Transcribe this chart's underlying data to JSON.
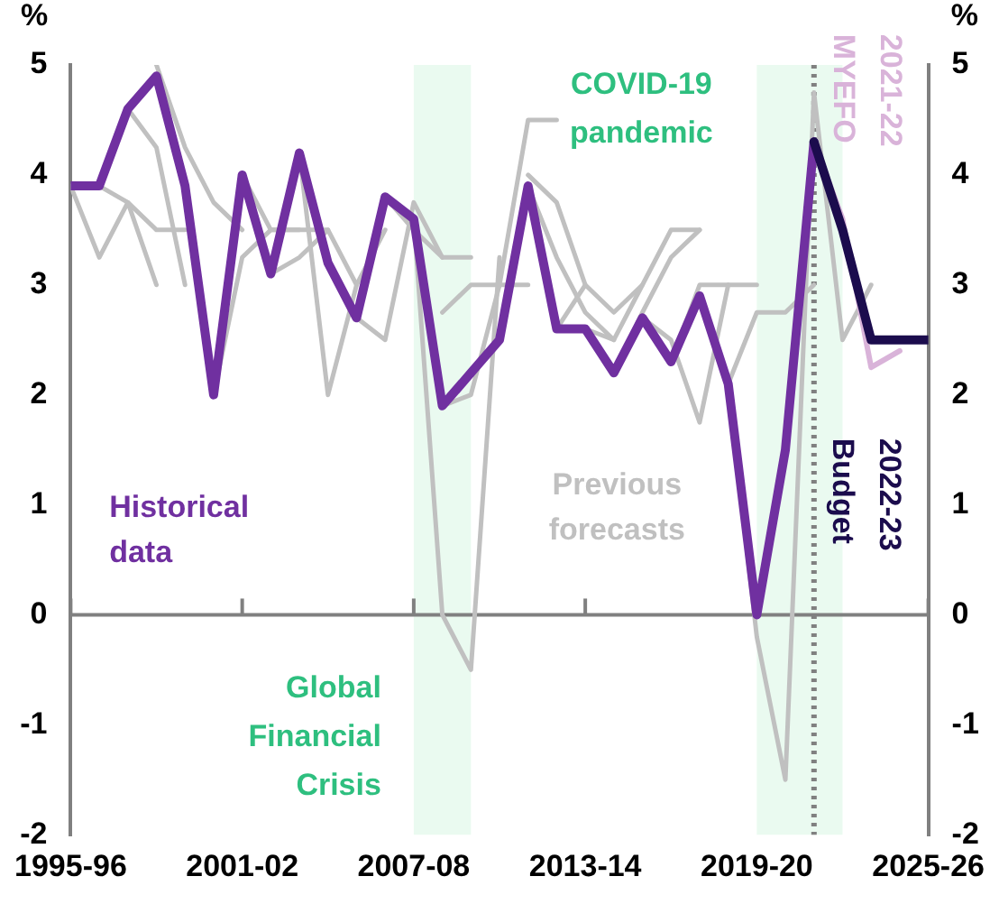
{
  "chart_data": {
    "type": "line",
    "ylabel": "%",
    "y2label": "%",
    "categories": [
      "1995-96",
      null,
      null,
      null,
      null,
      null,
      "2001-02",
      null,
      null,
      null,
      null,
      null,
      "2007-08",
      null,
      null,
      null,
      null,
      null,
      "2013-14",
      null,
      null,
      null,
      null,
      null,
      "2019-20",
      null,
      null,
      null,
      null,
      null,
      "2025-26"
    ],
    "ylim": [
      -2,
      5
    ],
    "yticks": [
      -2,
      -1,
      0,
      1,
      2,
      3,
      4,
      5
    ],
    "y2lim": [
      -2,
      5
    ],
    "y2ticks": [
      -2,
      -1,
      0,
      1,
      2,
      3,
      4,
      5
    ],
    "legend": false,
    "marker": "none",
    "grid": false,
    "annotations": [
      "Global Financial Crisis",
      "COVID-19 pandemic"
    ],
    "series": [
      {
        "name": "Previous forecasts",
        "color": "#c0c0c0",
        "values": [
          3.9,
          3.25,
          3.75,
          3.0,
          null,
          null,
          null,
          null,
          null,
          null,
          null,
          null,
          null,
          null,
          null,
          null,
          null,
          null,
          null,
          null,
          null,
          null,
          null,
          null,
          null,
          null,
          null,
          null,
          null,
          null,
          null
        ]
      },
      {
        "color": "#c0c0c0",
        "values": [
          null,
          3.9,
          3.75,
          3.5,
          3.5,
          null,
          null,
          null,
          null,
          null,
          null,
          null,
          null,
          null,
          null,
          null,
          null,
          null,
          null,
          null,
          null,
          null,
          null,
          null,
          null,
          null,
          null,
          null,
          null,
          null,
          null
        ]
      },
      {
        "color": "#c0c0c0",
        "values": [
          null,
          null,
          4.6,
          4.25,
          3.0,
          null,
          null,
          null,
          null,
          null,
          null,
          null,
          null,
          null,
          null,
          null,
          null,
          null,
          null,
          null,
          null,
          null,
          null,
          null,
          null,
          null,
          null,
          null,
          null,
          null,
          null
        ]
      },
      {
        "color": "#c0c0c0",
        "values": [
          null,
          null,
          null,
          5.0,
          4.25,
          3.75,
          3.5,
          null,
          null,
          null,
          null,
          null,
          null,
          null,
          null,
          null,
          null,
          null,
          null,
          null,
          null,
          null,
          null,
          null,
          null,
          null,
          null,
          null,
          null,
          null,
          null
        ]
      },
      {
        "color": "#c0c0c0",
        "values": [
          null,
          null,
          null,
          null,
          null,
          2.0,
          3.25,
          3.5,
          3.5,
          null,
          null,
          null,
          null,
          null,
          null,
          null,
          null,
          null,
          null,
          null,
          null,
          null,
          null,
          null,
          null,
          null,
          null,
          null,
          null,
          null,
          null
        ]
      },
      {
        "color": "#c0c0c0",
        "values": [
          null,
          null,
          null,
          null,
          null,
          null,
          4.0,
          3.5,
          3.5,
          3.5,
          null,
          null,
          null,
          null,
          null,
          null,
          null,
          null,
          null,
          null,
          null,
          null,
          null,
          null,
          null,
          null,
          null,
          null,
          null,
          null,
          null
        ]
      },
      {
        "color": "#c0c0c0",
        "values": [
          null,
          null,
          null,
          null,
          null,
          null,
          null,
          3.1,
          3.25,
          3.5,
          3.0,
          null,
          null,
          null,
          null,
          null,
          null,
          null,
          null,
          null,
          null,
          null,
          null,
          null,
          null,
          null,
          null,
          null,
          null,
          null,
          null
        ]
      },
      {
        "color": "#c0c0c0",
        "values": [
          null,
          null,
          null,
          null,
          null,
          null,
          null,
          null,
          4.2,
          2.0,
          3.0,
          3.5,
          null,
          null,
          null,
          null,
          null,
          null,
          null,
          null,
          null,
          null,
          null,
          null,
          null,
          null,
          null,
          null,
          null,
          null,
          null
        ]
      },
      {
        "color": "#c0c0c0",
        "values": [
          null,
          null,
          null,
          null,
          null,
          null,
          null,
          null,
          null,
          null,
          2.7,
          2.5,
          3.75,
          3.25,
          null,
          null,
          null,
          null,
          null,
          null,
          null,
          null,
          null,
          null,
          null,
          null,
          null,
          null,
          null,
          null,
          null
        ]
      },
      {
        "color": "#c0c0c0",
        "values": [
          null,
          null,
          null,
          null,
          null,
          null,
          null,
          null,
          null,
          null,
          null,
          3.8,
          3.5,
          3.25,
          3.25,
          null,
          null,
          null,
          null,
          null,
          null,
          null,
          null,
          null,
          null,
          null,
          null,
          null,
          null,
          null,
          null
        ]
      },
      {
        "color": "#c0c0c0",
        "values": [
          null,
          null,
          null,
          null,
          null,
          null,
          null,
          null,
          null,
          null,
          null,
          null,
          3.6,
          0.0,
          -0.5,
          3.25,
          null,
          null,
          null,
          null,
          null,
          null,
          null,
          null,
          null,
          null,
          null,
          null,
          null,
          null,
          null
        ]
      },
      {
        "color": "#c0c0c0",
        "values": [
          null,
          null,
          null,
          null,
          null,
          null,
          null,
          null,
          null,
          null,
          null,
          null,
          null,
          1.9,
          2.0,
          3.0,
          4.5,
          4.5,
          null,
          null,
          null,
          null,
          null,
          null,
          null,
          null,
          null,
          null,
          null,
          null,
          null
        ]
      },
      {
        "color": "#c0c0c0",
        "values": [
          null,
          null,
          null,
          null,
          null,
          null,
          null,
          null,
          null,
          null,
          null,
          null,
          null,
          2.75,
          3.0,
          3.0,
          3.0,
          null,
          null,
          null,
          null,
          null,
          null,
          null,
          null,
          null,
          null,
          null,
          null,
          null,
          null
        ]
      },
      {
        "color": "#c0c0c0",
        "values": [
          null,
          null,
          null,
          null,
          null,
          null,
          null,
          null,
          null,
          null,
          null,
          null,
          null,
          null,
          null,
          null,
          4.0,
          3.75,
          3.0,
          null,
          null,
          null,
          null,
          null,
          null,
          null,
          null,
          null,
          null,
          null,
          null
        ]
      },
      {
        "color": "#c0c0c0",
        "values": [
          null,
          null,
          null,
          null,
          null,
          null,
          null,
          null,
          null,
          null,
          null,
          null,
          null,
          null,
          null,
          null,
          3.9,
          3.25,
          2.75,
          2.5,
          null,
          null,
          null,
          null,
          null,
          null,
          null,
          null,
          null,
          null,
          null
        ]
      },
      {
        "color": "#c0c0c0",
        "values": [
          null,
          null,
          null,
          null,
          null,
          null,
          null,
          null,
          null,
          null,
          null,
          null,
          null,
          null,
          null,
          null,
          null,
          2.6,
          3.0,
          2.75,
          3.0,
          null,
          null,
          null,
          null,
          null,
          null,
          null,
          null,
          null,
          null
        ]
      },
      {
        "color": "#c0c0c0",
        "values": [
          null,
          null,
          null,
          null,
          null,
          null,
          null,
          null,
          null,
          null,
          null,
          null,
          null,
          null,
          null,
          null,
          null,
          null,
          2.6,
          2.5,
          3.0,
          3.5,
          3.5,
          null,
          null,
          null,
          null,
          null,
          null,
          null,
          null
        ]
      },
      {
        "color": "#c0c0c0",
        "values": [
          null,
          null,
          null,
          null,
          null,
          null,
          null,
          null,
          null,
          null,
          null,
          null,
          null,
          null,
          null,
          null,
          null,
          null,
          null,
          2.2,
          2.75,
          3.25,
          3.5,
          null,
          null,
          null,
          null,
          null,
          null,
          null,
          null
        ]
      },
      {
        "color": "#c0c0c0",
        "values": [
          null,
          null,
          null,
          null,
          null,
          null,
          null,
          null,
          null,
          null,
          null,
          null,
          null,
          null,
          null,
          null,
          null,
          null,
          null,
          null,
          2.7,
          2.5,
          1.75,
          3.0,
          null,
          null,
          null,
          null,
          null,
          null,
          null
        ]
      },
      {
        "color": "#c0c0c0",
        "values": [
          null,
          null,
          null,
          null,
          null,
          null,
          null,
          null,
          null,
          null,
          null,
          null,
          null,
          null,
          null,
          null,
          null,
          null,
          null,
          null,
          null,
          2.3,
          3.0,
          3.0,
          3.0,
          null,
          null,
          null,
          null,
          null,
          null
        ]
      },
      {
        "color": "#c0c0c0",
        "values": [
          null,
          null,
          null,
          null,
          null,
          null,
          null,
          null,
          null,
          null,
          null,
          null,
          null,
          null,
          null,
          null,
          null,
          null,
          null,
          null,
          null,
          null,
          null,
          2.1,
          2.75,
          2.75,
          3.0,
          null,
          null,
          null,
          null
        ]
      },
      {
        "color": "#c0c0c0",
        "values": [
          null,
          null,
          null,
          null,
          null,
          null,
          null,
          null,
          null,
          null,
          null,
          null,
          null,
          null,
          null,
          null,
          null,
          null,
          null,
          null,
          null,
          null,
          null,
          2.1,
          -0.2,
          -1.5,
          4.75,
          2.5,
          3.0,
          null,
          null
        ]
      },
      {
        "name": "2021-22 MYEFO",
        "color": "#d9b3d9",
        "values": [
          null,
          null,
          null,
          null,
          null,
          null,
          null,
          null,
          null,
          null,
          null,
          null,
          null,
          null,
          null,
          null,
          null,
          null,
          null,
          null,
          null,
          null,
          null,
          null,
          null,
          null,
          4.3,
          3.6,
          2.25,
          2.4,
          null
        ]
      },
      {
        "name": "Historical data",
        "color": "#7030a0",
        "values": [
          3.9,
          3.9,
          4.6,
          4.9,
          3.9,
          2.0,
          4.0,
          3.1,
          4.2,
          3.2,
          2.7,
          3.8,
          3.6,
          1.9,
          2.2,
          2.5,
          3.9,
          2.6,
          2.6,
          2.2,
          2.7,
          2.3,
          2.9,
          2.1,
          0.0,
          1.5,
          4.3,
          null,
          null,
          null,
          null
        ]
      },
      {
        "name": "2022-23 Budget",
        "color": "#1b0c4d",
        "values": [
          null,
          null,
          null,
          null,
          null,
          null,
          null,
          null,
          null,
          null,
          null,
          null,
          null,
          null,
          null,
          null,
          null,
          null,
          null,
          null,
          null,
          null,
          null,
          null,
          null,
          null,
          4.3,
          3.5,
          2.5,
          2.5,
          2.5
        ]
      }
    ]
  }
}
